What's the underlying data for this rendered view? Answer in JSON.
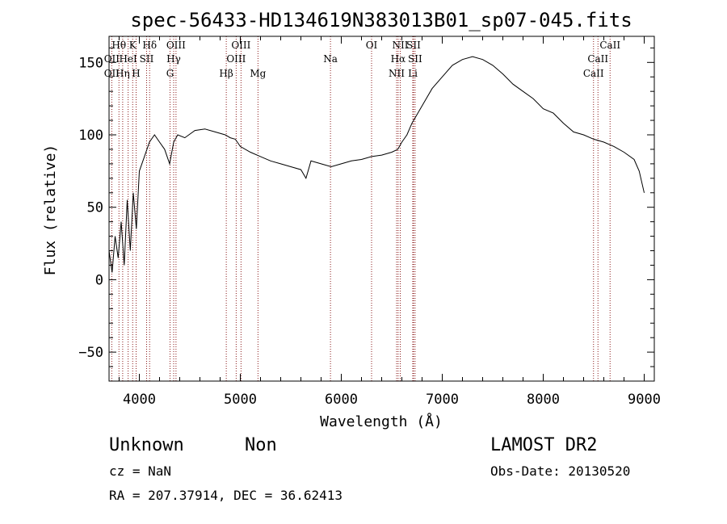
{
  "chart_data": {
    "type": "line",
    "title": "spec-56433-HD134619N383013B01_sp07-045.fits",
    "xlabel": "Wavelength (Å)",
    "ylabel": "Flux (relative)",
    "xlim": [
      3700,
      9100
    ],
    "ylim": [
      -70,
      168
    ],
    "xticks": [
      4000,
      5000,
      6000,
      7000,
      8000,
      9000
    ],
    "yticks": [
      -50,
      0,
      50,
      100,
      150
    ],
    "series_color": "#000000",
    "line_marker_color": "#8b1a1a",
    "series": [
      {
        "x": [
          3700,
          3730,
          3760,
          3790,
          3820,
          3850,
          3880,
          3910,
          3940,
          3970,
          4000,
          4050,
          4100,
          4150,
          4200,
          4250,
          4300,
          4340,
          4380,
          4450,
          4550,
          4650,
          4750,
          4850,
          4900,
          4950,
          5000,
          5100,
          5200,
          5300,
          5400,
          5500,
          5600,
          5650,
          5700,
          5800,
          5900,
          6000,
          6100,
          6200,
          6300,
          6400,
          6500,
          6560,
          6600,
          6650,
          6700,
          6800,
          6900,
          7000,
          7100,
          7200,
          7300,
          7400,
          7500,
          7600,
          7700,
          7800,
          7900,
          8000,
          8100,
          8200,
          8300,
          8400,
          8500,
          8600,
          8700,
          8800,
          8900,
          8950,
          9000
        ],
        "y": [
          20,
          5,
          30,
          15,
          40,
          10,
          55,
          20,
          60,
          35,
          75,
          85,
          95,
          100,
          95,
          90,
          80,
          95,
          100,
          98,
          103,
          104,
          102,
          100,
          98,
          97,
          92,
          88,
          85,
          82,
          80,
          78,
          76,
          70,
          82,
          80,
          78,
          80,
          82,
          83,
          85,
          86,
          88,
          90,
          95,
          100,
          108,
          120,
          132,
          140,
          148,
          152,
          154,
          152,
          148,
          142,
          135,
          130,
          125,
          118,
          115,
          108,
          102,
          100,
          97,
          95,
          92,
          88,
          83,
          75,
          60
        ]
      }
    ],
    "spectral_lines": [
      {
        "label": "Hθ",
        "wavelength": 3798,
        "row": 0
      },
      {
        "label": "K",
        "wavelength": 3934,
        "row": 0
      },
      {
        "label": "Hδ",
        "wavelength": 4102,
        "row": 0
      },
      {
        "label": "OIII",
        "wavelength": 4363,
        "row": 0
      },
      {
        "label": "OIII",
        "wavelength": 5007,
        "row": 0
      },
      {
        "label": "Na",
        "wavelength": 5893,
        "row": 1
      },
      {
        "label": "OI",
        "wavelength": 6300,
        "row": 0
      },
      {
        "label": "NII",
        "wavelength": 6584,
        "row": 0
      },
      {
        "label": "SII",
        "wavelength": 6716,
        "row": 0
      },
      {
        "label": "CaII",
        "wavelength": 8662,
        "row": 0
      },
      {
        "label": "OII",
        "wavelength": 3727,
        "row": 1
      },
      {
        "label": "HeI",
        "wavelength": 3889,
        "row": 1
      },
      {
        "label": "SII",
        "wavelength": 4072,
        "row": 1
      },
      {
        "label": "Hγ",
        "wavelength": 4340,
        "row": 1
      },
      {
        "label": "OIII",
        "wavelength": 4959,
        "row": 1
      },
      {
        "label": "Hα",
        "wavelength": 6563,
        "row": 1
      },
      {
        "label": "SII",
        "wavelength": 6731,
        "row": 1
      },
      {
        "label": "CaII",
        "wavelength": 8542,
        "row": 1
      },
      {
        "label": "OII",
        "wavelength": 3727,
        "row": 2
      },
      {
        "label": "Hη",
        "wavelength": 3835,
        "row": 2
      },
      {
        "label": "H",
        "wavelength": 3968,
        "row": 2
      },
      {
        "label": "G",
        "wavelength": 4304,
        "row": 2
      },
      {
        "label": "Hβ",
        "wavelength": 4861,
        "row": 2
      },
      {
        "label": "Mg",
        "wavelength": 5175,
        "row": 2
      },
      {
        "label": "NII",
        "wavelength": 6548,
        "row": 2
      },
      {
        "label": "Li",
        "wavelength": 6708,
        "row": 2
      },
      {
        "label": "CaII",
        "wavelength": 8498,
        "row": 2
      }
    ]
  },
  "footer": {
    "class_label": "Unknown",
    "subclass_label": "Non",
    "cz_text": "cz = NaN",
    "radec_text": "RA = 207.37914, DEC =  36.62413",
    "survey": "LAMOST DR2",
    "obs_date": "Obs-Date: 20130520"
  }
}
